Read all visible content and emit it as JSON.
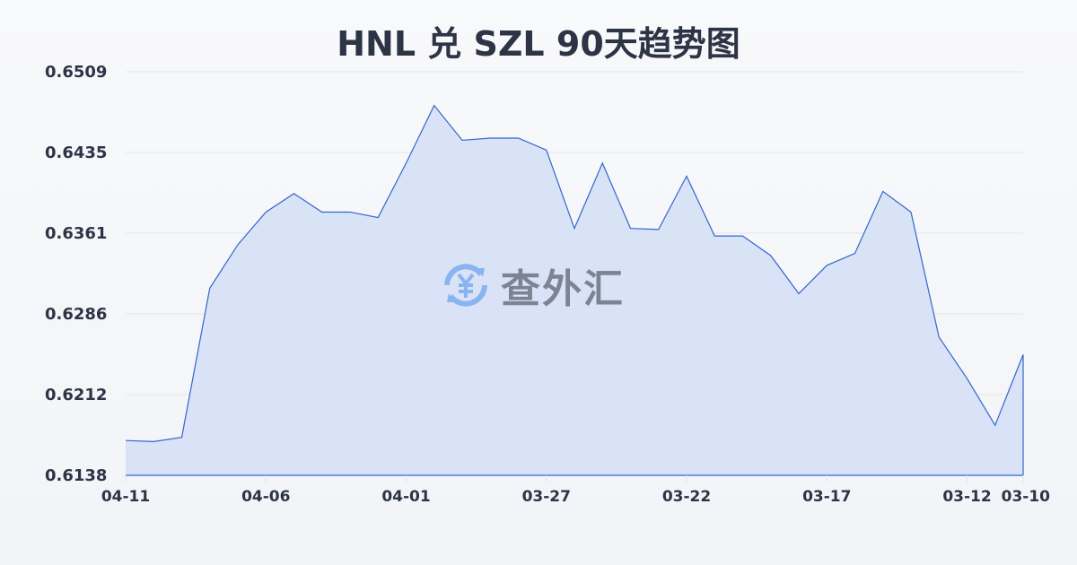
{
  "watermark": {
    "text": "查外汇",
    "icon": "yen-exchange-icon"
  },
  "colors": {
    "line": "#3366cc",
    "fill": "#d6e0f5",
    "grid": "#e3e6ec",
    "text": "#2d3446"
  },
  "chart_data": {
    "type": "area",
    "title": "HNL 兑 SZL 90天趋势图",
    "xlabel": "",
    "ylabel": "",
    "x": [
      "04-11",
      "04-10",
      "04-09",
      "04-08",
      "04-07",
      "04-06",
      "04-05",
      "04-04",
      "04-03",
      "04-02",
      "04-01",
      "03-31",
      "03-30",
      "03-29",
      "03-28",
      "03-27",
      "03-26",
      "03-25",
      "03-24",
      "03-23",
      "03-22",
      "03-21",
      "03-20",
      "03-19",
      "03-18",
      "03-17",
      "03-16",
      "03-15",
      "03-14",
      "03-13",
      "03-12",
      "03-11",
      "03-10"
    ],
    "values": [
      0.617,
      0.6169,
      0.6173,
      0.631,
      0.635,
      0.638,
      0.6397,
      0.638,
      0.638,
      0.6375,
      0.6425,
      0.6478,
      0.6446,
      0.6448,
      0.6448,
      0.6437,
      0.6365,
      0.6425,
      0.6365,
      0.6364,
      0.6413,
      0.6358,
      0.6358,
      0.634,
      0.6305,
      0.6331,
      0.6342,
      0.6399,
      0.638,
      0.6265,
      0.6227,
      0.6184,
      0.6249
    ],
    "x_ticks": [
      "04-11",
      "04-06",
      "04-01",
      "03-27",
      "03-22",
      "03-17",
      "03-12",
      "03-10"
    ],
    "y_ticks": [
      "0.6509",
      "0.6435",
      "0.6361",
      "0.6286",
      "0.6212",
      "0.6138"
    ],
    "ylim": [
      0.6138,
      0.6509
    ],
    "grid": true,
    "legend": "none"
  }
}
